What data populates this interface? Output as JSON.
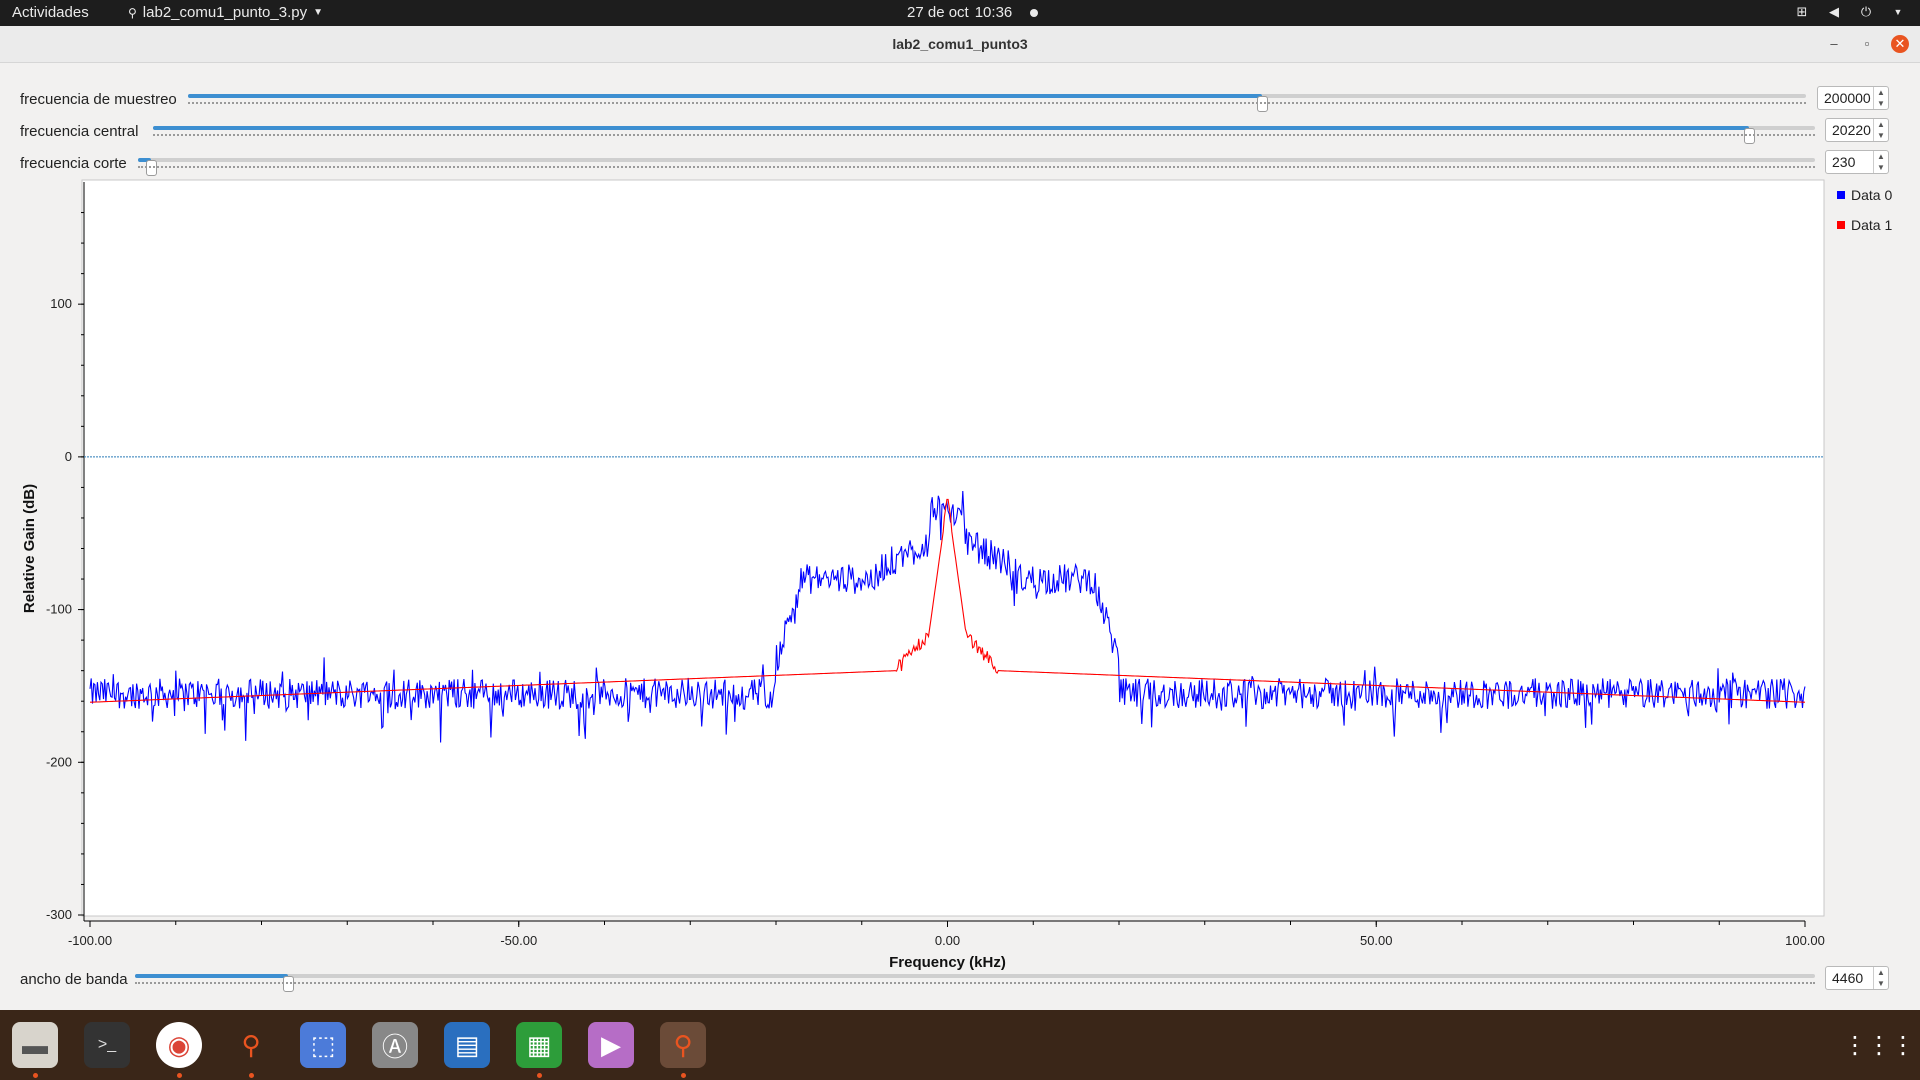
{
  "topbar": {
    "activities": "Actividades",
    "app_menu": "lab2_comu1_punto_3.py",
    "date": "27 de oct",
    "time": "10:36"
  },
  "window": {
    "title": "lab2_comu1_punto3"
  },
  "controls": {
    "sample_rate": {
      "label": "frecuencia de muestreo",
      "value": "200000",
      "fraction": 0.664
    },
    "center_freq": {
      "label": "frecuencia central",
      "value": "20220",
      "fraction": 0.96
    },
    "cutoff": {
      "label": "frecuencia corte",
      "value": "230",
      "fraction": 0.008
    },
    "bandwidth": {
      "label": "ancho de banda",
      "value": "4460",
      "fraction": 0.091
    }
  },
  "chart_data": {
    "type": "line",
    "xlabel": "Frequency (kHz)",
    "ylabel": "Relative Gain (dB)",
    "xlim": [
      -100,
      100
    ],
    "ylim": [
      -300,
      180
    ],
    "x_ticks": [
      "-100.00",
      "-50.00",
      "0.00",
      "50.00",
      "100.00"
    ],
    "y_ticks": [
      "100",
      "0",
      "-100",
      "-200",
      "-300"
    ],
    "reference_line_y": 0,
    "legend_position": "right",
    "series": [
      {
        "name": "Data 0",
        "color": "#0000ff"
      },
      {
        "name": "Data 1",
        "color": "#ff0000"
      }
    ]
  },
  "dock": {
    "apps": [
      "files-icon",
      "terminal-icon",
      "chrome-icon",
      "gnuradio-icon",
      "screenshot-icon",
      "software-center-icon",
      "writer-icon",
      "calc-icon",
      "video-icon",
      "gnuradio-active-icon"
    ]
  }
}
